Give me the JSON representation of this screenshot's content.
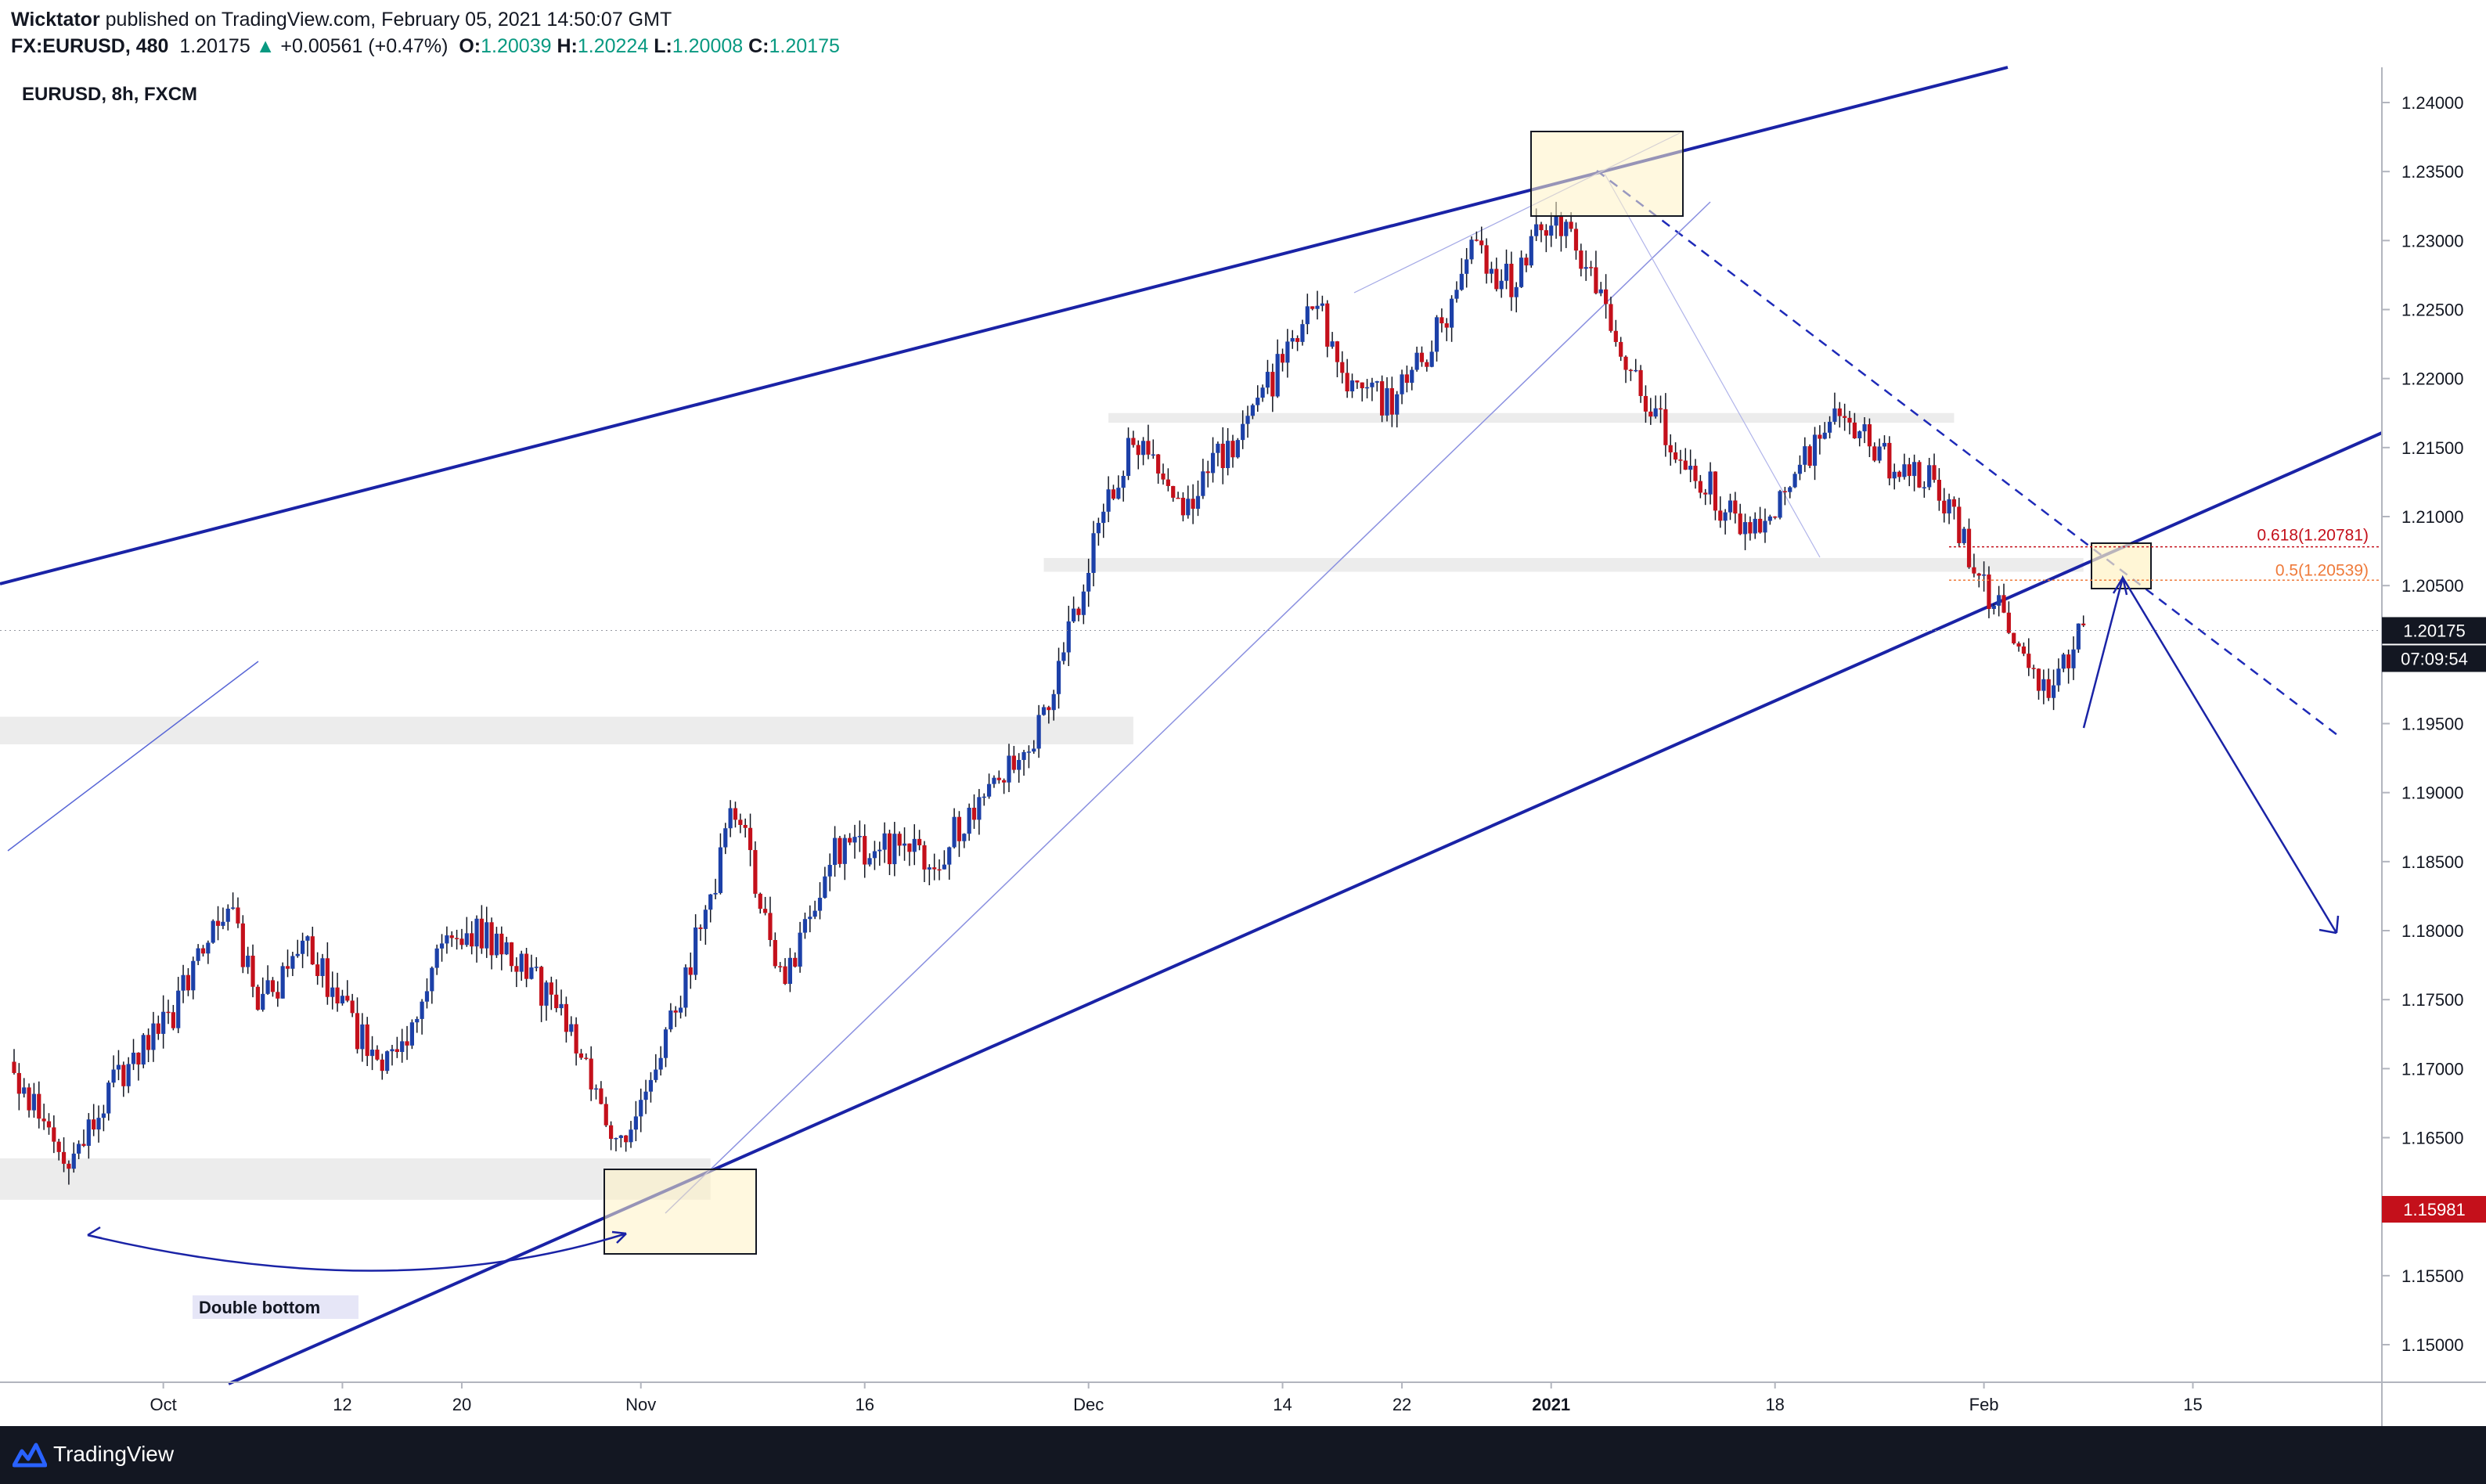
{
  "header": {
    "author": "Wicktator",
    "published_text": "published on TradingView.com, February 05, 2021 14:50:07 GMT",
    "symbol_line": "FX:EURUSD, 480",
    "last_price": "1.20175",
    "change_arrow": "▲",
    "change": "+0.00561 (+0.47%)",
    "open_key": "O:",
    "open": "1.20039",
    "high_key": "H:",
    "high": "1.20224",
    "low_key": "L:",
    "low": "1.20008",
    "close_key": "C:",
    "close": "1.20175"
  },
  "chart_data": {
    "type": "candlestick",
    "title": "EURUSD, 8h, FXCM",
    "ylim": [
      1.1475,
      1.2425
    ],
    "y_ticks": [
      "1.24000",
      "1.23500",
      "1.23000",
      "1.22500",
      "1.22000",
      "1.21500",
      "1.21000",
      "1.20500",
      "1.20000",
      "1.19500",
      "1.19000",
      "1.18500",
      "1.18000",
      "1.17500",
      "1.17000",
      "1.16500",
      "1.16000",
      "1.15500",
      "1.15000"
    ],
    "x_ticks": [
      {
        "label": "Oct",
        "bar": 30,
        "bold": false
      },
      {
        "label": "12",
        "bar": 66,
        "bold": false
      },
      {
        "label": "20",
        "bar": 90,
        "bold": false
      },
      {
        "label": "Nov",
        "bar": 126,
        "bold": false
      },
      {
        "label": "16",
        "bar": 171,
        "bold": false
      },
      {
        "label": "Dec",
        "bar": 216,
        "bold": false
      },
      {
        "label": "14",
        "bar": 255,
        "bold": false
      },
      {
        "label": "22",
        "bar": 279,
        "bold": false
      },
      {
        "label": "2021",
        "bar": 309,
        "bold": true
      },
      {
        "label": "18",
        "bar": 354,
        "bold": false
      },
      {
        "label": "Feb",
        "bar": 396,
        "bold": false
      },
      {
        "label": "15",
        "bar": 438,
        "bold": false
      }
    ],
    "x_slot_count": 476,
    "last_price_label": "1.20175",
    "countdown_label": "07:09:54",
    "crosshair_price_label": "1.15981",
    "colors": {
      "up": "#1c40a8",
      "down": "#c4101b",
      "line": "#1a23a6"
    },
    "annotations": {
      "double_bottom_label": "Double bottom",
      "fib_618_label": "0.618(1.20781)",
      "fib_618_value": 1.20781,
      "fib_05_label": "0.5(1.20539)",
      "fib_05_value": 1.20539
    },
    "anchors": [
      {
        "bar": 0,
        "price": 1.1705
      },
      {
        "bar": 12,
        "price": 1.1625
      },
      {
        "bar": 22,
        "price": 1.1695
      },
      {
        "bar": 32,
        "price": 1.1735
      },
      {
        "bar": 44,
        "price": 1.182
      },
      {
        "bar": 50,
        "price": 1.1745
      },
      {
        "bar": 60,
        "price": 1.1785
      },
      {
        "bar": 70,
        "price": 1.1725
      },
      {
        "bar": 78,
        "price": 1.17
      },
      {
        "bar": 88,
        "price": 1.1805
      },
      {
        "bar": 100,
        "price": 1.179
      },
      {
        "bar": 112,
        "price": 1.1735
      },
      {
        "bar": 122,
        "price": 1.164
      },
      {
        "bar": 136,
        "price": 1.1765
      },
      {
        "bar": 146,
        "price": 1.189
      },
      {
        "bar": 156,
        "price": 1.176
      },
      {
        "bar": 166,
        "price": 1.1855
      },
      {
        "bar": 176,
        "price": 1.186
      },
      {
        "bar": 186,
        "price": 1.185
      },
      {
        "bar": 198,
        "price": 1.191
      },
      {
        "bar": 208,
        "price": 1.195
      },
      {
        "bar": 218,
        "price": 1.208
      },
      {
        "bar": 226,
        "price": 1.2155
      },
      {
        "bar": 236,
        "price": 1.211
      },
      {
        "bar": 250,
        "price": 1.217
      },
      {
        "bar": 262,
        "price": 1.226
      },
      {
        "bar": 270,
        "price": 1.2195
      },
      {
        "bar": 278,
        "price": 1.218
      },
      {
        "bar": 286,
        "price": 1.2225
      },
      {
        "bar": 294,
        "price": 1.229
      },
      {
        "bar": 302,
        "price": 1.227
      },
      {
        "bar": 310,
        "price": 1.232
      },
      {
        "bar": 318,
        "price": 1.2275
      },
      {
        "bar": 326,
        "price": 1.221
      },
      {
        "bar": 334,
        "price": 1.215
      },
      {
        "bar": 342,
        "price": 1.212
      },
      {
        "bar": 350,
        "price": 1.208
      },
      {
        "bar": 358,
        "price": 1.213
      },
      {
        "bar": 368,
        "price": 1.217
      },
      {
        "bar": 378,
        "price": 1.214
      },
      {
        "bar": 386,
        "price": 1.2125
      },
      {
        "bar": 392,
        "price": 1.209
      },
      {
        "bar": 398,
        "price": 1.2045
      },
      {
        "bar": 404,
        "price": 1.201
      },
      {
        "bar": 410,
        "price": 1.1965
      },
      {
        "bar": 416,
        "price": 1.2015
      }
    ]
  }
}
